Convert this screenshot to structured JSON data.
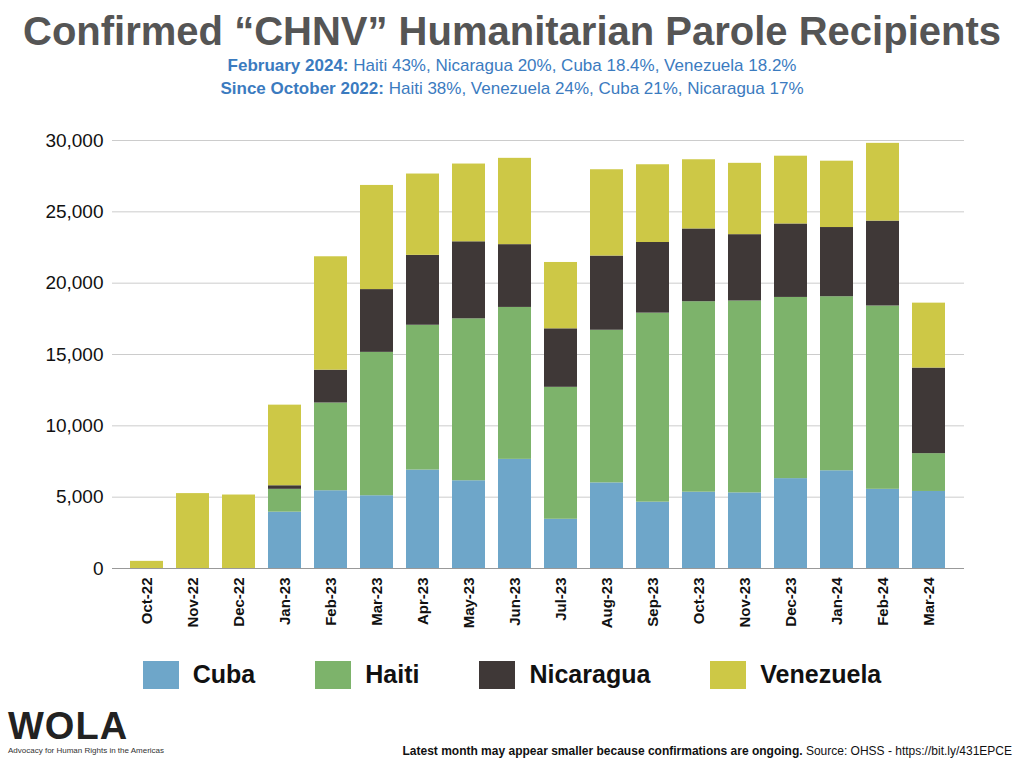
{
  "chart_data": {
    "type": "bar",
    "stacked": true,
    "title": "Confirmed “CHNV” Humanitarian Parole Recipients",
    "subtitle": [
      {
        "label": "February 2024:",
        "text": "Haiti 43%, Nicaragua 20%, Cuba 18.4%, Venezuela 18.2%"
      },
      {
        "label": "Since October 2022:",
        "text": "Haiti 38%, Venezuela 24%, Cuba 21%, Nicaragua 17%"
      }
    ],
    "note": "Latest month may appear smaller because confirmations are ongoing.",
    "source": "Source: OHSS - https://bit.ly/431EPCE",
    "logo": {
      "name": "WOLA",
      "tagline": "Advocacy for Human Rights in the Americas"
    },
    "categories": [
      "Oct-22",
      "Nov-22",
      "Dec-22",
      "Jan-23",
      "Feb-23",
      "Mar-23",
      "Apr-23",
      "May-23",
      "Jun-23",
      "Jul-23",
      "Aug-23",
      "Sep-23",
      "Oct-23",
      "Nov-23",
      "Dec-23",
      "Jan-24",
      "Feb-24",
      "Mar-24"
    ],
    "series": [
      {
        "name": "Cuba",
        "color": "#6ea6c9",
        "values": [
          0,
          0,
          0,
          3950,
          5450,
          5100,
          6900,
          6150,
          7650,
          3450,
          6000,
          4650,
          5350,
          5300,
          6300,
          6850,
          5550,
          5400
        ]
      },
      {
        "name": "Haiti",
        "color": "#7db36b",
        "values": [
          0,
          0,
          0,
          1600,
          6150,
          10050,
          10150,
          11350,
          10650,
          9250,
          10700,
          13250,
          13350,
          13450,
          12700,
          12200,
          12850,
          2650
        ]
      },
      {
        "name": "Nicaragua",
        "color": "#3f3837",
        "values": [
          0,
          0,
          0,
          250,
          2300,
          4400,
          4900,
          5400,
          4400,
          4100,
          5200,
          4950,
          5100,
          4650,
          5150,
          4850,
          5950,
          6000
        ]
      },
      {
        "name": "Venezuela",
        "color": "#cdc846",
        "values": [
          500,
          5250,
          5150,
          5650,
          7950,
          7300,
          5700,
          5450,
          6050,
          4650,
          6050,
          5450,
          4850,
          5000,
          4750,
          4650,
          5450,
          4550
        ]
      }
    ],
    "ylim": [
      0,
      30000
    ],
    "yticks": [
      0,
      {
        "value": 5000,
        "label": "5,000"
      },
      {
        "value": 10000,
        "label": "10,000"
      },
      {
        "value": 15000,
        "label": "15,000"
      },
      {
        "value": 20000,
        "label": "20,000"
      },
      {
        "value": 25000,
        "label": "25,000"
      },
      {
        "value": 30000,
        "label": "30,000"
      }
    ],
    "grid": true,
    "legend": "bottom"
  }
}
